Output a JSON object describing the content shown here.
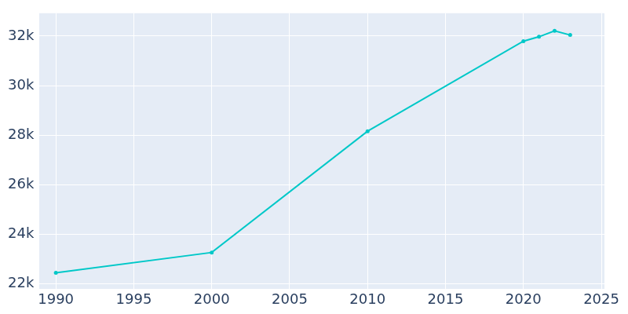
{
  "chart_data": {
    "type": "line",
    "x": [
      1990,
      2000,
      2010,
      2020,
      2021,
      2022,
      2023
    ],
    "values": [
      22450,
      23270,
      28160,
      31790,
      31970,
      32210,
      32040
    ],
    "color": "#00c8c8",
    "marker": "circle",
    "xlim": [
      1988.9,
      2025.2
    ],
    "xticks": [
      1990,
      1995,
      2000,
      2005,
      2010,
      2015,
      2020,
      2025
    ],
    "ylim": [
      21790,
      32920
    ],
    "yticks": [
      {
        "value": 22000,
        "label": "22k"
      },
      {
        "value": 24000,
        "label": "24k"
      },
      {
        "value": 26000,
        "label": "26k"
      },
      {
        "value": 28000,
        "label": "28k"
      },
      {
        "value": 30000,
        "label": "30k"
      },
      {
        "value": 32000,
        "label": "32k"
      }
    ],
    "grid": true
  }
}
